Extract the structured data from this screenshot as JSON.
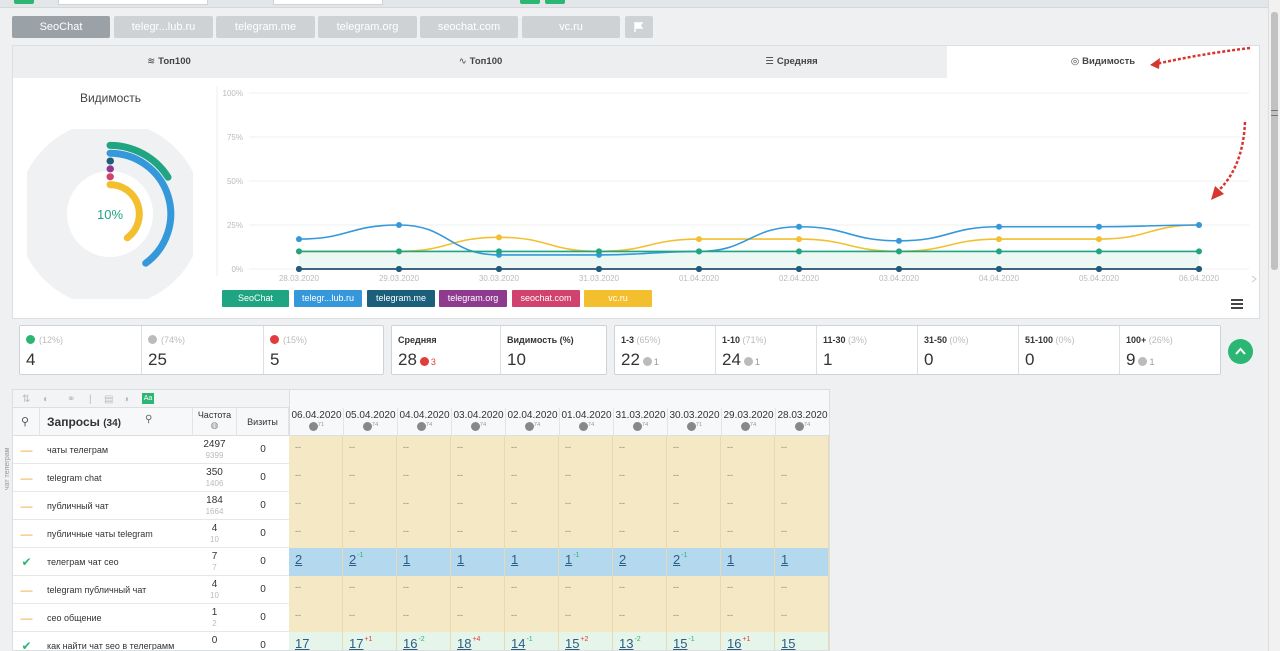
{
  "site_tabs": [
    "SeoChat",
    "telegr...lub.ru",
    "telegram.me",
    "telegram.org",
    "seochat.com",
    "vc.ru"
  ],
  "metric_tabs": [
    {
      "icon": "≋",
      "label": "Топ100"
    },
    {
      "icon": "∿",
      "label": "Топ100"
    },
    {
      "icon": "☰",
      "label": "Средняя"
    },
    {
      "icon": "◎",
      "label": "Видимость"
    }
  ],
  "donut": {
    "title": "Видимость",
    "value": "10%"
  },
  "chart_data": {
    "type": "line",
    "x": [
      "28.03.2020",
      "29.03.2020",
      "30.03.2020",
      "31.03.2020",
      "01.04.2020",
      "02.04.2020",
      "03.04.2020",
      "04.04.2020",
      "05.04.2020",
      "06.04.2020"
    ],
    "yticks": [
      "0%",
      "25%",
      "50%",
      "75%",
      "100%"
    ],
    "ylim": [
      0,
      100
    ],
    "series": [
      {
        "name": "SeoChat",
        "color": "#1fa581",
        "values": [
          10,
          10,
          10,
          10,
          10,
          10,
          10,
          10,
          10,
          10
        ]
      },
      {
        "name": "telegr...lub.ru",
        "color": "#3498db",
        "values": [
          17,
          25,
          8,
          8,
          10,
          24,
          16,
          24,
          24,
          25
        ]
      },
      {
        "name": "telegram.me",
        "color": "#1b5f7a",
        "values": [
          0,
          0,
          0,
          0,
          0,
          0,
          0,
          0,
          0,
          0
        ]
      },
      {
        "name": "telegram.org",
        "color": "#8e3a8f",
        "values": [
          0,
          0,
          0,
          0,
          0,
          0,
          0,
          0,
          0,
          0
        ]
      },
      {
        "name": "seochat.com",
        "color": "#d1426e",
        "values": [
          0,
          0,
          0,
          0,
          0,
          0,
          0,
          0,
          0,
          0
        ]
      },
      {
        "name": "vc.ru",
        "color": "#f4bf2f",
        "values": [
          10,
          10,
          18,
          10,
          17,
          17,
          10,
          17,
          17,
          25
        ]
      }
    ]
  },
  "stats": {
    "box1": [
      {
        "pct": "(12%)",
        "value": "4",
        "icon_color": "#2bb673"
      },
      {
        "pct": "(74%)",
        "value": "25",
        "icon_color": "#bbbbbb"
      },
      {
        "pct": "(15%)",
        "value": "5",
        "icon_color": "#e03c3c"
      }
    ],
    "avg": {
      "label": "Средняя",
      "value": "28",
      "delta": "3"
    },
    "vis": {
      "label": "Видимость (%)",
      "value": "10"
    },
    "ranges": [
      {
        "label": "1-3",
        "pct": "(65%)",
        "value": "22",
        "delta": "1"
      },
      {
        "label": "1-10",
        "pct": "(71%)",
        "value": "24",
        "delta": "1"
      },
      {
        "label": "11-30",
        "pct": "(3%)",
        "value": "1",
        "delta": ""
      },
      {
        "label": "31-50",
        "pct": "(0%)",
        "value": "0",
        "delta": ""
      },
      {
        "label": "51-100",
        "pct": "(0%)",
        "value": "0",
        "delta": ""
      },
      {
        "label": "100+",
        "pct": "(26%)",
        "value": "9",
        "delta": "1"
      }
    ]
  },
  "table": {
    "queries_header": "Запросы",
    "queries_count": "(34)",
    "freq_header": "Частота",
    "visits_header": "Визиты",
    "side_label": "чат телеграм",
    "dates": [
      {
        "d": "06.04.2020",
        "g": "71"
      },
      {
        "d": "05.04.2020",
        "g": "74"
      },
      {
        "d": "04.04.2020",
        "g": "74"
      },
      {
        "d": "03.04.2020",
        "g": "74"
      },
      {
        "d": "02.04.2020",
        "g": "74"
      },
      {
        "d": "01.04.2020",
        "g": "74"
      },
      {
        "d": "31.03.2020",
        "g": "74"
      },
      {
        "d": "30.03.2020",
        "g": "71"
      },
      {
        "d": "29.03.2020",
        "g": "74"
      },
      {
        "d": "28.03.2020",
        "g": "74"
      }
    ],
    "rows": [
      {
        "status": "minus",
        "query": "чаты телеграм",
        "freq": "2497",
        "freq2": "9399",
        "visits": "0",
        "bg": "#f5e8c4",
        "pos": []
      },
      {
        "status": "minus",
        "query": "telegram chat",
        "freq": "350",
        "freq2": "1406",
        "visits": "0",
        "bg": "#f5e8c4",
        "pos": []
      },
      {
        "status": "minus",
        "query": "публичный чат",
        "freq": "184",
        "freq2": "1664",
        "visits": "0",
        "bg": "#f5e8c4",
        "pos": []
      },
      {
        "status": "minus",
        "query": "публичные чаты telegram",
        "freq": "4",
        "freq2": "10",
        "visits": "0",
        "bg": "#f5e8c4",
        "pos": []
      },
      {
        "status": "check",
        "query": "телеграм чат сео",
        "freq": "7",
        "freq2": "7",
        "visits": "0",
        "bg": "#b4d8ee",
        "pos": [
          {
            "n": "2",
            "d": ""
          },
          {
            "n": "2",
            "d": "-1"
          },
          {
            "n": "1",
            "d": ""
          },
          {
            "n": "1",
            "d": ""
          },
          {
            "n": "1",
            "d": ""
          },
          {
            "n": "1",
            "d": "-1"
          },
          {
            "n": "2",
            "d": ""
          },
          {
            "n": "2",
            "d": "-1"
          },
          {
            "n": "1",
            "d": ""
          },
          {
            "n": "1",
            "d": ""
          }
        ]
      },
      {
        "status": "minus",
        "query": "telegram публичный чат",
        "freq": "4",
        "freq2": "10",
        "visits": "0",
        "bg": "#f5e8c4",
        "pos": []
      },
      {
        "status": "minus",
        "query": "сео общение",
        "freq": "1",
        "freq2": "2",
        "visits": "0",
        "bg": "#f5e8c4",
        "pos": []
      },
      {
        "status": "check",
        "query": "как найти чат seo в телеграмм",
        "freq": "0",
        "freq2": "",
        "visits": "0",
        "bg": "#e6f5ea",
        "pos": [
          {
            "n": "17",
            "d": ""
          },
          {
            "n": "17",
            "d": "+1"
          },
          {
            "n": "16",
            "d": "-2"
          },
          {
            "n": "18",
            "d": "+4"
          },
          {
            "n": "14",
            "d": "-1"
          },
          {
            "n": "15",
            "d": "+2"
          },
          {
            "n": "13",
            "d": "-2"
          },
          {
            "n": "15",
            "d": "-1"
          },
          {
            "n": "16",
            "d": "+1"
          },
          {
            "n": "15",
            "d": ""
          }
        ]
      }
    ]
  }
}
